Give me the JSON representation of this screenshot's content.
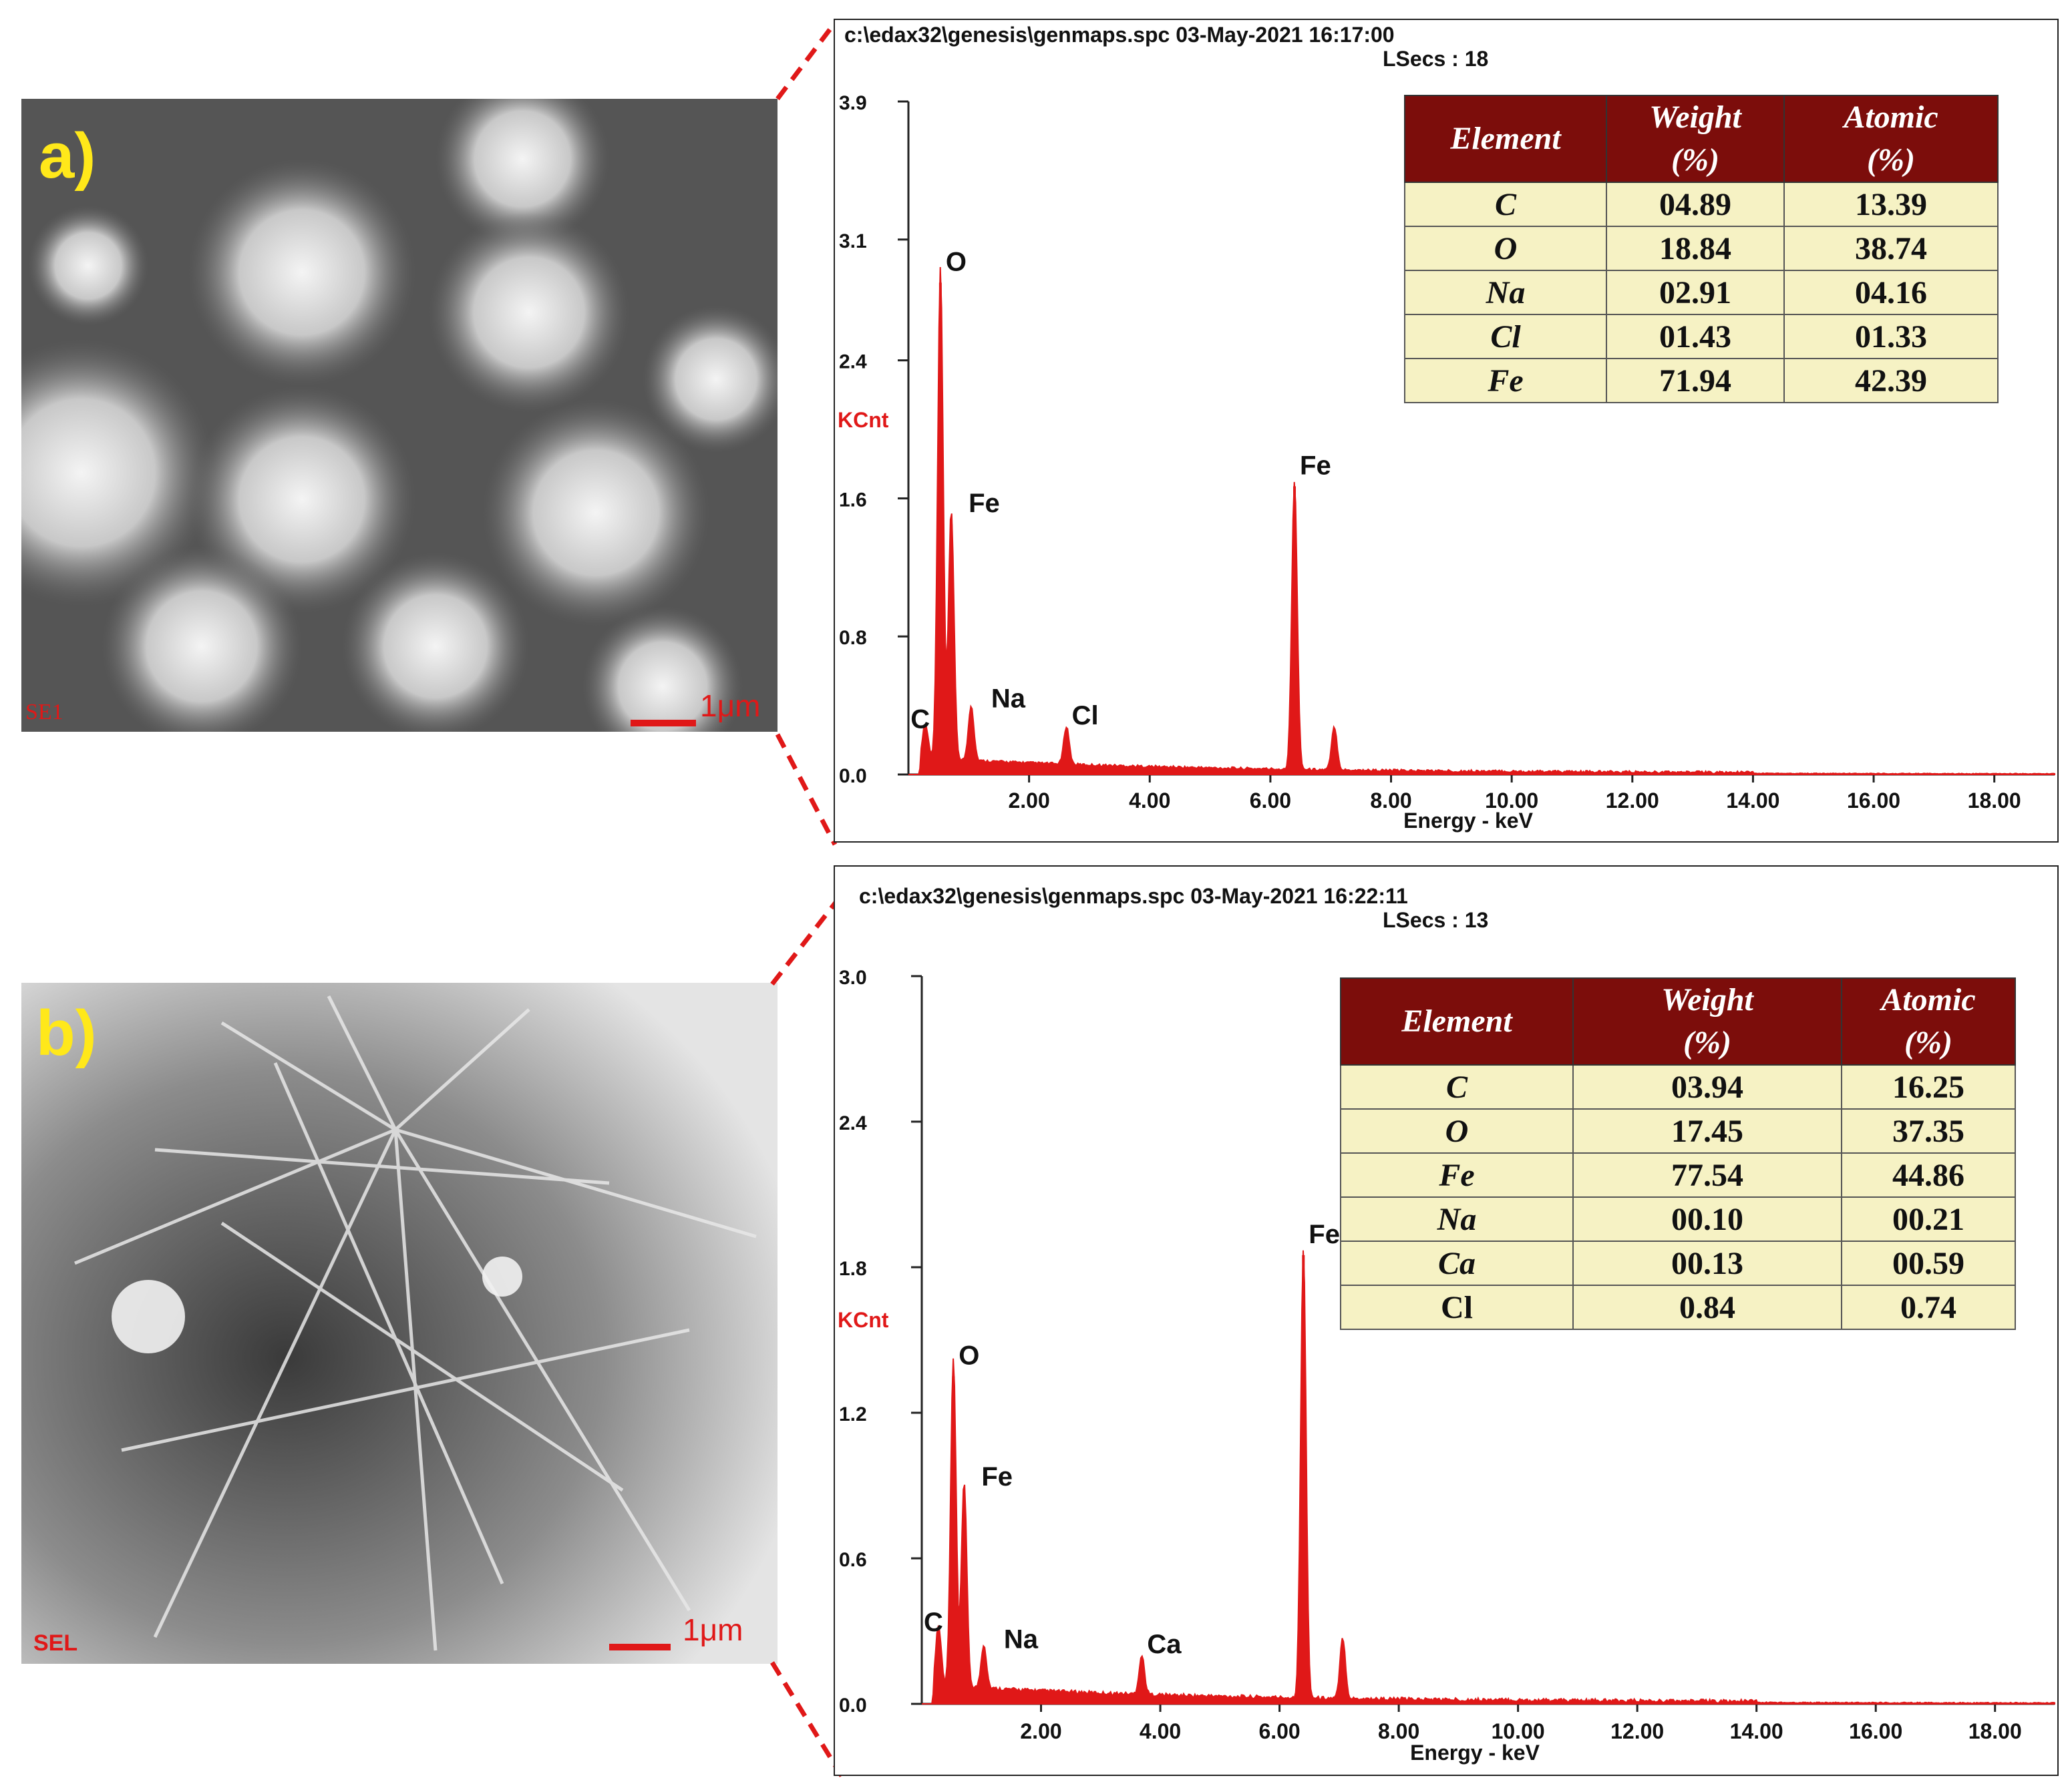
{
  "colors": {
    "spectrum": "#e01818",
    "table_header_bg": "#7c0d0b",
    "table_cell_bg": "#f6f2c4",
    "panel_letter": "#ffe81a"
  },
  "panels": [
    {
      "letter": "a)",
      "sem_label": "SE1",
      "scale_text": "1μm",
      "header_line1": "c:\\edax32\\genesis\\genmaps.spc  03-May-2021 16:17:00",
      "header_line2": "LSecs :  18",
      "table": {
        "headers": [
          "Element",
          "Weight (%)",
          "Atomic (%)"
        ],
        "rows": [
          [
            "C",
            "04.89",
            "13.39"
          ],
          [
            "O",
            "18.84",
            "38.74"
          ],
          [
            "Na",
            "02.91",
            "04.16"
          ],
          [
            "Cl",
            "01.43",
            "01.33"
          ],
          [
            "Fe",
            "71.94",
            "42.39"
          ]
        ]
      }
    },
    {
      "letter": "b)",
      "sem_label": "SEL",
      "scale_text": "1μm",
      "header_line1": "c:\\edax32\\genesis\\genmaps.spc  03-May-2021 16:22:11",
      "header_line2": "LSecs :  13",
      "table": {
        "headers": [
          "Element",
          "Weight (%)",
          "Atomic (%)"
        ],
        "rows": [
          [
            "C",
            "03.94",
            "16.25"
          ],
          [
            "O",
            "17.45",
            "37.35"
          ],
          [
            "Fe",
            "77.54",
            "44.86"
          ],
          [
            "Na",
            "00.10",
            "00.21"
          ],
          [
            "Ca",
            "00.13",
            "00.59"
          ],
          [
            "Cl",
            "0.84",
            "0.74"
          ]
        ]
      }
    }
  ],
  "chart_data": [
    {
      "type": "line",
      "xlabel": "Energy - keV",
      "ylabel": "KCnt",
      "xlim": [
        0,
        19
      ],
      "ylim": [
        0,
        3.9
      ],
      "xticks": [
        "2.00",
        "4.00",
        "6.00",
        "8.00",
        "10.00",
        "12.00",
        "14.00",
        "16.00",
        "18.00"
      ],
      "yticks": [
        "0.0",
        "0.8",
        "1.6",
        "2.4",
        "3.1",
        "3.9"
      ],
      "grid": false,
      "peaks": [
        {
          "label": "C",
          "x": 0.28,
          "y": 0.2
        },
        {
          "label": "O",
          "x": 0.53,
          "y": 2.85
        },
        {
          "label": "Fe",
          "x": 0.71,
          "y": 1.45
        },
        {
          "label": "Na",
          "x": 1.04,
          "y": 0.32
        },
        {
          "label": "Cl",
          "x": 2.62,
          "y": 0.22
        },
        {
          "label": "Fe",
          "x": 6.4,
          "y": 1.67
        },
        {
          "label": "",
          "x": 7.06,
          "y": 0.25
        }
      ]
    },
    {
      "type": "line",
      "xlabel": "Energy - keV",
      "ylabel": "KCnt",
      "xlim": [
        0,
        19
      ],
      "ylim": [
        0,
        3.0
      ],
      "xticks": [
        "2.00",
        "4.00",
        "6.00",
        "8.00",
        "10.00",
        "12.00",
        "14.00",
        "16.00",
        "18.00"
      ],
      "yticks": [
        "0.0",
        "0.6",
        "1.2",
        "1.8",
        "2.4",
        "3.0"
      ],
      "grid": false,
      "peaks": [
        {
          "label": "C",
          "x": 0.28,
          "y": 0.25
        },
        {
          "label": "O",
          "x": 0.53,
          "y": 1.35
        },
        {
          "label": "Fe",
          "x": 0.71,
          "y": 0.85
        },
        {
          "label": "Na",
          "x": 1.04,
          "y": 0.18
        },
        {
          "label": "Ca",
          "x": 3.69,
          "y": 0.16
        },
        {
          "label": "Fe",
          "x": 6.4,
          "y": 1.85
        },
        {
          "label": "",
          "x": 7.06,
          "y": 0.25
        }
      ]
    }
  ]
}
